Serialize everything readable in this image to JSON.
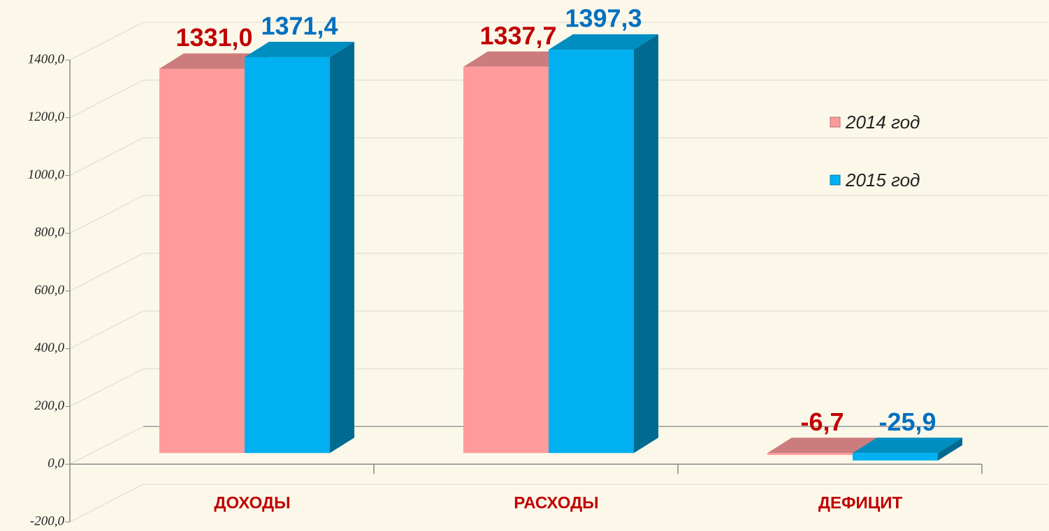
{
  "chart_data": {
    "type": "bar3d",
    "categories": [
      "ДОХОДЫ",
      "РАСХОДЫ",
      "ДЕФИЦИТ"
    ],
    "series": [
      {
        "name": "2014 год",
        "color": "#ff9b9b",
        "values": [
          1331.0,
          1337.7,
          -6.7
        ],
        "value_labels": [
          "1331,0",
          "1337,7",
          "-6,7"
        ],
        "label_color": "#c00000"
      },
      {
        "name": "2015 год",
        "color": "#00b0f0",
        "values": [
          1371.4,
          1397.3,
          -25.9
        ],
        "value_labels": [
          "1371,4",
          "1397,3",
          "-25,9"
        ],
        "label_color": "#0070c0"
      }
    ],
    "ylim": [
      -200,
      1400
    ],
    "yticks": [
      {
        "value": -200,
        "label": "-200,0"
      },
      {
        "value": 0,
        "label": "0,0"
      },
      {
        "value": 200,
        "label": "200,0"
      },
      {
        "value": 400,
        "label": "400,0"
      },
      {
        "value": 600,
        "label": "600,0"
      },
      {
        "value": 800,
        "label": "800,0"
      },
      {
        "value": 1000,
        "label": "1000,0"
      },
      {
        "value": 1200,
        "label": "1200,0"
      },
      {
        "value": 1400,
        "label": "1400,0"
      }
    ],
    "grid": true,
    "legend": "right"
  }
}
